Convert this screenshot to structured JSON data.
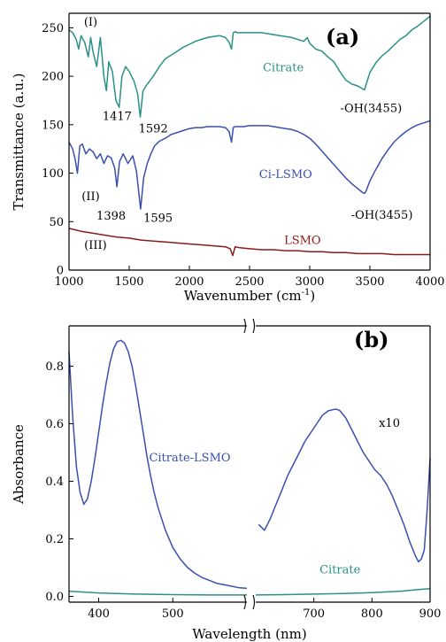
{
  "chart_data": [
    {
      "type": "line",
      "panel_label": "(a)",
      "xlabel": "Wavenumber (cm",
      "xlabel_sup": "-1",
      "xlabel_end": ")",
      "ylabel": "Transmittance (a.u.)",
      "xlim": [
        1000,
        4000
      ],
      "ylim": [
        0,
        265
      ],
      "xticks": [
        "1000",
        "1500",
        "2000",
        "2500",
        "3000",
        "3500",
        "4000"
      ],
      "yticks": [
        "0",
        "50",
        "100",
        "150",
        "200",
        "250"
      ],
      "series": [
        {
          "name": "Citrate",
          "color": "#2a9088",
          "x": [
            1000,
            1030,
            1060,
            1080,
            1100,
            1130,
            1160,
            1180,
            1200,
            1230,
            1260,
            1290,
            1310,
            1330,
            1360,
            1390,
            1417,
            1440,
            1470,
            1500,
            1540,
            1570,
            1592,
            1615,
            1640,
            1670,
            1700,
            1750,
            1800,
            1850,
            1900,
            1950,
            2000,
            2050,
            2100,
            2150,
            2200,
            2250,
            2300,
            2330,
            2350,
            2365,
            2380,
            2400,
            2450,
            2500,
            2550,
            2600,
            2650,
            2700,
            2750,
            2800,
            2850,
            2900,
            2950,
            2980,
            3000,
            3050,
            3100,
            3150,
            3200,
            3250,
            3300,
            3350,
            3400,
            3440,
            3455,
            3470,
            3500,
            3550,
            3600,
            3650,
            3700,
            3750,
            3800,
            3850,
            3900,
            3950,
            4000
          ],
          "y": [
            248,
            245,
            238,
            228,
            242,
            235,
            220,
            240,
            225,
            210,
            240,
            200,
            185,
            215,
            205,
            175,
            168,
            200,
            210,
            205,
            195,
            182,
            158,
            185,
            190,
            195,
            200,
            210,
            218,
            222,
            226,
            230,
            233,
            236,
            238,
            240,
            241,
            242,
            240,
            235,
            228,
            245,
            246,
            245,
            245,
            245,
            245,
            245,
            244,
            243,
            242,
            241,
            240,
            238,
            236,
            240,
            234,
            228,
            226,
            220,
            215,
            205,
            196,
            192,
            190,
            187,
            186,
            192,
            204,
            214,
            221,
            226,
            232,
            238,
            242,
            248,
            252,
            257,
            262
          ]
        },
        {
          "name": "Ci-LSMO",
          "color": "#3a4fb0",
          "x": [
            1000,
            1030,
            1050,
            1070,
            1090,
            1110,
            1140,
            1170,
            1200,
            1230,
            1260,
            1290,
            1320,
            1350,
            1380,
            1398,
            1420,
            1450,
            1490,
            1530,
            1560,
            1595,
            1620,
            1650,
            1680,
            1710,
            1750,
            1800,
            1850,
            1900,
            1950,
            2000,
            2050,
            2100,
            2150,
            2200,
            2250,
            2300,
            2330,
            2350,
            2365,
            2380,
            2400,
            2450,
            2500,
            2550,
            2600,
            2650,
            2700,
            2750,
            2800,
            2850,
            2900,
            2950,
            3000,
            3050,
            3100,
            3150,
            3200,
            3250,
            3300,
            3350,
            3400,
            3440,
            3455,
            3470,
            3500,
            3550,
            3600,
            3650,
            3700,
            3750,
            3800,
            3850,
            3900,
            3950,
            4000
          ],
          "y": [
            132,
            125,
            115,
            100,
            128,
            130,
            120,
            125,
            122,
            115,
            120,
            110,
            118,
            116,
            105,
            86,
            112,
            120,
            110,
            118,
            102,
            63,
            95,
            110,
            120,
            128,
            133,
            136,
            140,
            142,
            144,
            146,
            147,
            147,
            148,
            148,
            148,
            147,
            143,
            132,
            147,
            148,
            148,
            148,
            149,
            149,
            149,
            149,
            148,
            147,
            146,
            145,
            143,
            140,
            136,
            130,
            123,
            116,
            109,
            102,
            95,
            89,
            84,
            80,
            79,
            82,
            92,
            104,
            115,
            124,
            132,
            138,
            143,
            147,
            150,
            152,
            154
          ]
        },
        {
          "name": "LSMO",
          "color": "#8b1a1a",
          "x": [
            1000,
            1100,
            1200,
            1300,
            1400,
            1500,
            1600,
            1700,
            1800,
            1900,
            2000,
            2100,
            2200,
            2300,
            2340,
            2360,
            2380,
            2420,
            2500,
            2600,
            2700,
            2800,
            2900,
            3000,
            3100,
            3200,
            3300,
            3400,
            3500,
            3600,
            3700,
            3800,
            3900,
            4000
          ],
          "y": [
            43,
            40,
            38,
            36,
            34,
            33,
            31,
            30,
            29,
            28,
            27,
            26,
            25,
            24,
            22,
            15,
            24,
            23,
            22,
            21,
            21,
            20,
            20,
            19,
            19,
            18,
            18,
            17,
            17,
            17,
            16,
            16,
            16,
            16
          ]
        }
      ],
      "annotations": [
        {
          "text": "(I)",
          "x": 1180,
          "y": 252,
          "color": "#000000"
        },
        {
          "text": "1417",
          "x": 1400,
          "y": 155,
          "color": "#000000"
        },
        {
          "text": "1592",
          "x": 1700,
          "y": 142,
          "color": "#000000"
        },
        {
          "text": "Citrate",
          "x": 2780,
          "y": 205,
          "color": "#2a9088"
        },
        {
          "text": "-OH(3455)",
          "x": 3510,
          "y": 163,
          "color": "#000000"
        },
        {
          "text": "(II)",
          "x": 1180,
          "y": 72,
          "color": "#000000"
        },
        {
          "text": "1398",
          "x": 1350,
          "y": 52,
          "color": "#000000"
        },
        {
          "text": "1595",
          "x": 1740,
          "y": 50,
          "color": "#000000"
        },
        {
          "text": "Ci-LSMO",
          "x": 2800,
          "y": 95,
          "color": "#3a4fb0"
        },
        {
          "text": "-OH(3455)",
          "x": 3600,
          "y": 53,
          "color": "#000000"
        },
        {
          "text": "(III)",
          "x": 1220,
          "y": 22,
          "color": "#000000"
        },
        {
          "text": "LSMO",
          "x": 2940,
          "y": 27,
          "color": "#8b1a1a"
        }
      ]
    },
    {
      "type": "line",
      "panel_label": "(b)",
      "xlabel": "Wavelength (nm)",
      "ylabel": "Absorbance",
      "ylim": [
        -0.02,
        0.94
      ],
      "axis_break": true,
      "x_segments": [
        {
          "xlim": [
            360,
            600
          ],
          "xticks": [
            "400",
            "500"
          ]
        },
        {
          "xlim": [
            600,
            900
          ],
          "xticks": [
            "700",
            "800",
            "900"
          ]
        }
      ],
      "yticks": [
        "0.0",
        "0.2",
        "0.4",
        "0.6",
        "0.8"
      ],
      "series": [
        {
          "name": "Citrate-LSMO",
          "color": "#3a4fb0",
          "segment": 0,
          "x": [
            360,
            365,
            370,
            375,
            380,
            385,
            390,
            395,
            400,
            405,
            410,
            415,
            420,
            425,
            430,
            435,
            440,
            445,
            450,
            455,
            460,
            465,
            470,
            475,
            480,
            490,
            500,
            510,
            520,
            530,
            540,
            550,
            560,
            570,
            580,
            590,
            600
          ],
          "y": [
            0.85,
            0.62,
            0.45,
            0.36,
            0.32,
            0.34,
            0.4,
            0.48,
            0.57,
            0.66,
            0.74,
            0.81,
            0.86,
            0.885,
            0.89,
            0.88,
            0.85,
            0.8,
            0.73,
            0.65,
            0.57,
            0.49,
            0.42,
            0.36,
            0.31,
            0.23,
            0.17,
            0.13,
            0.1,
            0.08,
            0.065,
            0.055,
            0.045,
            0.04,
            0.035,
            0.03,
            0.028
          ]
        },
        {
          "name": "x10",
          "color": "#3a4fb0",
          "segment": 1,
          "x": [
            605,
            615,
            625,
            635,
            645,
            655,
            665,
            675,
            685,
            695,
            705,
            715,
            725,
            735,
            740,
            745,
            755,
            765,
            775,
            785,
            795,
            805,
            815,
            825,
            835,
            845,
            855,
            865,
            875,
            880,
            885,
            890,
            895,
            900
          ],
          "y": [
            0.25,
            0.23,
            0.27,
            0.32,
            0.37,
            0.42,
            0.46,
            0.5,
            0.54,
            0.57,
            0.6,
            0.63,
            0.645,
            0.65,
            0.65,
            0.645,
            0.62,
            0.58,
            0.54,
            0.5,
            0.47,
            0.44,
            0.42,
            0.39,
            0.35,
            0.3,
            0.25,
            0.19,
            0.14,
            0.12,
            0.13,
            0.16,
            0.3,
            0.48
          ]
        },
        {
          "name": "Citrate",
          "color": "#2a9088",
          "segment": 0,
          "x": [
            360,
            400,
            450,
            500,
            550,
            600
          ],
          "y": [
            0.018,
            0.012,
            0.008,
            0.006,
            0.005,
            0.005
          ]
        },
        {
          "name": "Citrate",
          "color": "#2a9088",
          "segment": 1,
          "x": [
            600,
            650,
            700,
            750,
            800,
            850,
            880,
            900
          ],
          "y": [
            0.005,
            0.006,
            0.008,
            0.01,
            0.013,
            0.018,
            0.024,
            0.027
          ]
        }
      ],
      "annotations": [
        {
          "text": "Citrate-LSMO",
          "segment": 0,
          "x": 523,
          "y": 0.47,
          "color": "#3a4fb0"
        },
        {
          "text": "x10",
          "segment": 1,
          "x": 830,
          "y": 0.59,
          "color": "#000000"
        },
        {
          "text": "Citrate",
          "segment": 1,
          "x": 745,
          "y": 0.08,
          "color": "#2a9088"
        }
      ]
    }
  ]
}
